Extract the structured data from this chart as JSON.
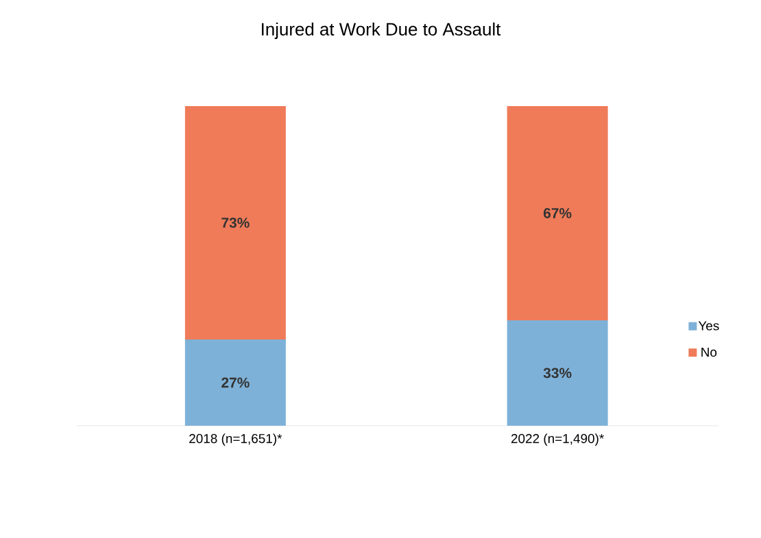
{
  "chart_data": {
    "type": "bar",
    "title": "Injured at Work Due to Assault",
    "stacked": true,
    "legend": "right",
    "categories": [
      "2018 (n=1,651)*",
      "2022 (n=1,490)*"
    ],
    "series": [
      {
        "name": "Yes",
        "color": "#7eb1d8",
        "values": [
          27,
          33
        ],
        "value_labels": [
          "27%",
          "33%"
        ]
      },
      {
        "name": "No",
        "color": "#ef7b59",
        "values": [
          73,
          67
        ],
        "value_labels": [
          "73%",
          "67%"
        ]
      }
    ]
  }
}
